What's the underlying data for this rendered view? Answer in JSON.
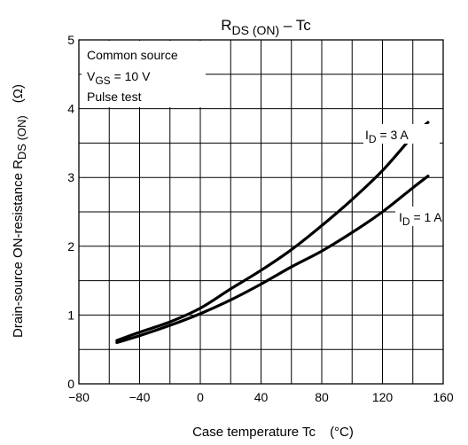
{
  "chart_data": {
    "type": "line",
    "title": {
      "main": "R",
      "sub": "DS (ON)",
      "rest": " – Tc"
    },
    "xlabel": {
      "text": "Case temperature   Tc",
      "unit": "(°C)"
    },
    "ylabel": {
      "text": "Drain-source ON-resistance   R",
      "sub": "DS (ON)",
      "unit": "(Ω)"
    },
    "xlim": [
      -80,
      160
    ],
    "ylim": [
      0,
      5
    ],
    "x_ticks": [
      "−80",
      "−40",
      "0",
      "40",
      "80",
      "120",
      "160"
    ],
    "y_ticks": [
      "0",
      "1",
      "2",
      "3",
      "4",
      "5"
    ],
    "x_minor_step": 20,
    "y_minor_step": 0.5,
    "grid": true,
    "conditions": {
      "line1": "Common source",
      "line2": {
        "main": "V",
        "sub": "GS",
        "rest": " = 10 V"
      },
      "line3": "Pulse test"
    },
    "series": [
      {
        "name": {
          "main": "I",
          "sub": "D",
          "rest": " = 3 A"
        },
        "x": [
          -55,
          -40,
          -20,
          0,
          20,
          40,
          60,
          80,
          100,
          120,
          140,
          150
        ],
        "y": [
          0.63,
          0.75,
          0.9,
          1.1,
          1.38,
          1.65,
          1.95,
          2.3,
          2.68,
          3.1,
          3.6,
          3.8
        ]
      },
      {
        "name": {
          "main": "I",
          "sub": "D",
          "rest": " = 1 A"
        },
        "x": [
          -55,
          -40,
          -20,
          0,
          20,
          40,
          60,
          80,
          100,
          120,
          140,
          150
        ],
        "y": [
          0.6,
          0.7,
          0.85,
          1.02,
          1.22,
          1.45,
          1.7,
          1.93,
          2.2,
          2.5,
          2.85,
          3.02
        ]
      }
    ]
  }
}
